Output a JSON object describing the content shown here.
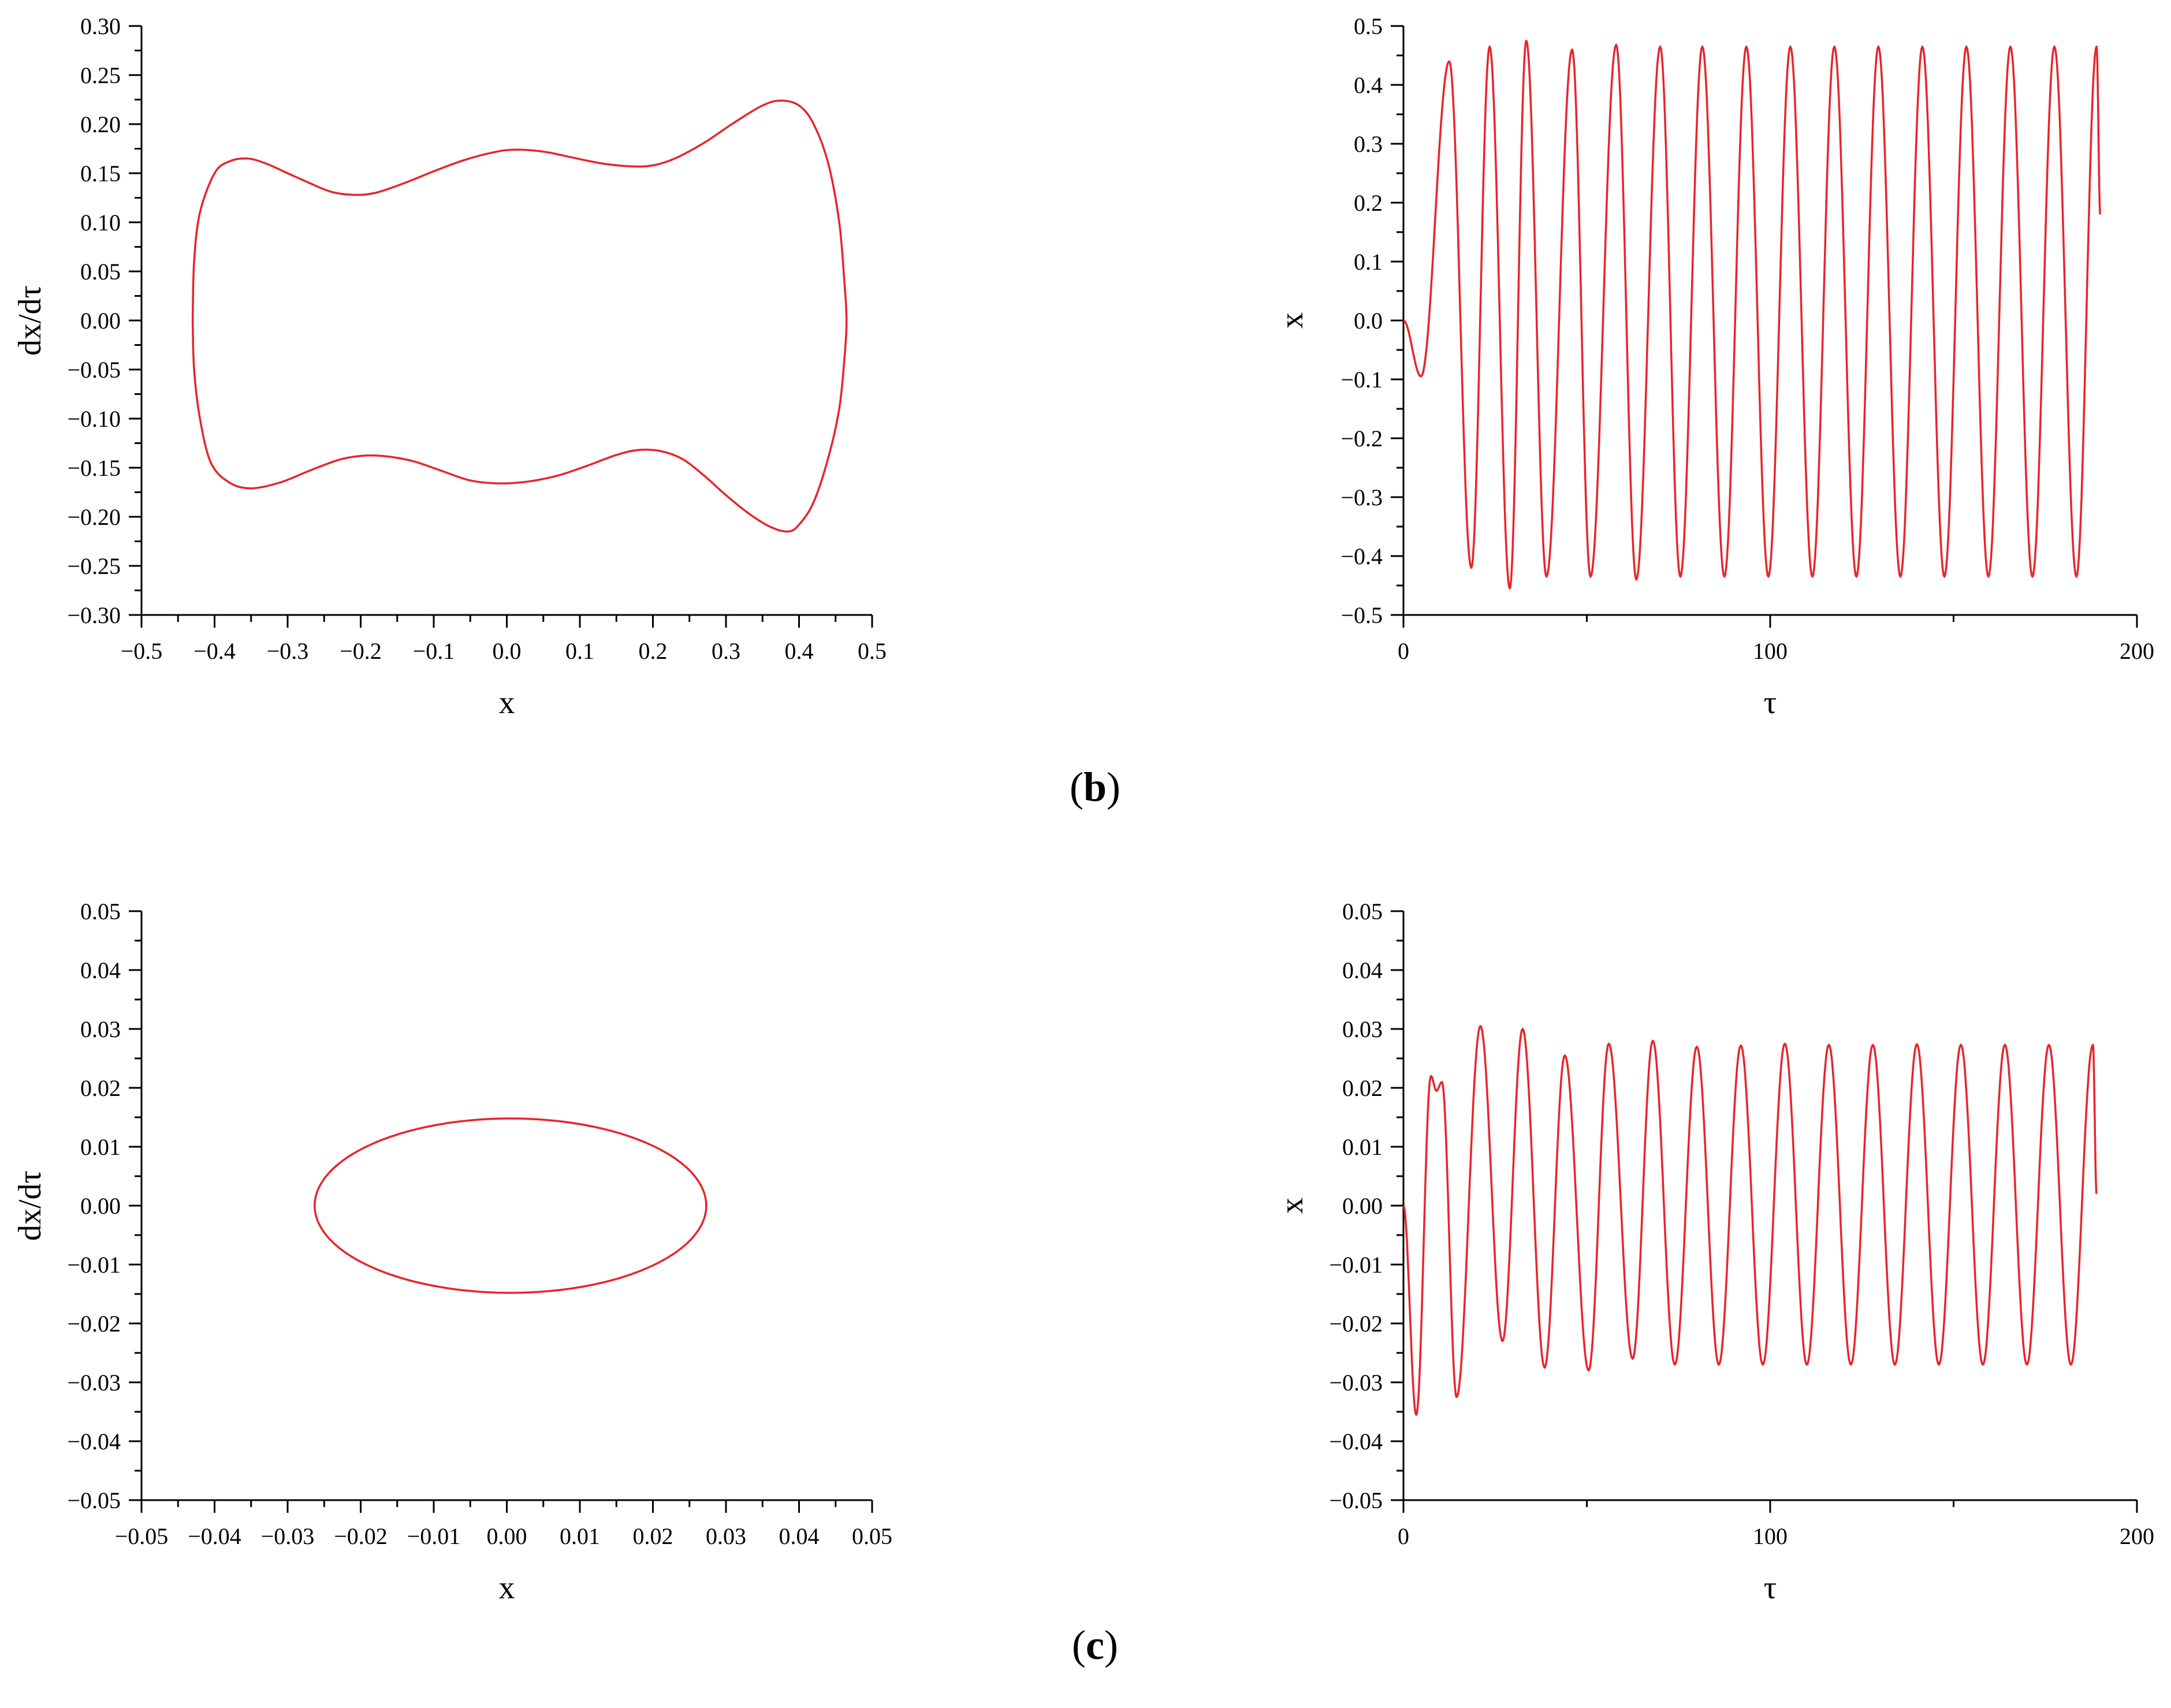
{
  "figure": {
    "panel_labels": [
      {
        "open": "(",
        "letter": "b",
        "close": ")"
      },
      {
        "open": "(",
        "letter": "c",
        "close": ")"
      }
    ],
    "line_color": "#e8242a"
  },
  "chart_data": [
    {
      "type": "line",
      "role": "phase-portrait",
      "xlabel": "x",
      "ylabel": "dx/dτ",
      "xlim": [
        -0.5,
        0.5
      ],
      "ylim": [
        -0.3,
        0.3
      ],
      "x_ticks": [
        "−0.5",
        "−0.4",
        "−0.3",
        "−0.2",
        "−0.1",
        "0.0",
        "0.1",
        "0.2",
        "0.3",
        "0.4",
        "0.5"
      ],
      "y_ticks": [
        "−0.30",
        "−0.25",
        "−0.20",
        "−0.15",
        "−0.10",
        "−0.05",
        "0.00",
        "0.05",
        "0.10",
        "0.15",
        "0.20",
        "0.25",
        "0.30"
      ],
      "closed": true,
      "points": [
        [
          -0.43,
          0.0
        ],
        [
          -0.428,
          0.06
        ],
        [
          -0.42,
          0.11
        ],
        [
          -0.4,
          0.15
        ],
        [
          -0.38,
          0.162
        ],
        [
          -0.355,
          0.165
        ],
        [
          -0.33,
          0.16
        ],
        [
          -0.3,
          0.15
        ],
        [
          -0.27,
          0.14
        ],
        [
          -0.24,
          0.131
        ],
        [
          -0.21,
          0.128
        ],
        [
          -0.18,
          0.13
        ],
        [
          -0.14,
          0.14
        ],
        [
          -0.1,
          0.152
        ],
        [
          -0.06,
          0.163
        ],
        [
          -0.02,
          0.171
        ],
        [
          0.01,
          0.174
        ],
        [
          0.05,
          0.172
        ],
        [
          0.09,
          0.166
        ],
        [
          0.13,
          0.16
        ],
        [
          0.17,
          0.157
        ],
        [
          0.2,
          0.158
        ],
        [
          0.23,
          0.165
        ],
        [
          0.27,
          0.181
        ],
        [
          0.31,
          0.201
        ],
        [
          0.35,
          0.219
        ],
        [
          0.375,
          0.224
        ],
        [
          0.4,
          0.219
        ],
        [
          0.42,
          0.2
        ],
        [
          0.44,
          0.16
        ],
        [
          0.455,
          0.1
        ],
        [
          0.462,
          0.04
        ],
        [
          0.465,
          0.0
        ],
        [
          0.462,
          -0.04
        ],
        [
          0.455,
          -0.09
        ],
        [
          0.44,
          -0.14
        ],
        [
          0.42,
          -0.185
        ],
        [
          0.4,
          -0.208
        ],
        [
          0.385,
          -0.215
        ],
        [
          0.36,
          -0.21
        ],
        [
          0.33,
          -0.196
        ],
        [
          0.3,
          -0.178
        ],
        [
          0.27,
          -0.158
        ],
        [
          0.24,
          -0.141
        ],
        [
          0.21,
          -0.133
        ],
        [
          0.18,
          -0.132
        ],
        [
          0.15,
          -0.137
        ],
        [
          0.11,
          -0.148
        ],
        [
          0.07,
          -0.158
        ],
        [
          0.03,
          -0.164
        ],
        [
          -0.01,
          -0.166
        ],
        [
          -0.05,
          -0.163
        ],
        [
          -0.09,
          -0.153
        ],
        [
          -0.13,
          -0.143
        ],
        [
          -0.17,
          -0.138
        ],
        [
          -0.2,
          -0.138
        ],
        [
          -0.23,
          -0.142
        ],
        [
          -0.27,
          -0.153
        ],
        [
          -0.31,
          -0.165
        ],
        [
          -0.35,
          -0.171
        ],
        [
          -0.38,
          -0.165
        ],
        [
          -0.405,
          -0.145
        ],
        [
          -0.42,
          -0.1
        ],
        [
          -0.428,
          -0.05
        ],
        [
          -0.43,
          0.0
        ]
      ]
    },
    {
      "type": "line",
      "role": "time-series",
      "xlabel": "τ",
      "ylabel": "x",
      "xlim": [
        0,
        200
      ],
      "ylim": [
        -0.5,
        0.5
      ],
      "x_ticks": [
        "0",
        "100",
        "200"
      ],
      "y_ticks": [
        "−0.5",
        "−0.4",
        "−0.3",
        "−0.2",
        "−0.1",
        "0.0",
        "0.1",
        "0.2",
        "0.3",
        "0.4",
        "0.5"
      ],
      "t_end": 190,
      "end_value": 0.18,
      "maxima": [
        [
          12.5,
          0.44
        ],
        [
          23.5,
          0.465
        ],
        [
          33.5,
          0.475
        ],
        [
          46,
          0.46
        ],
        [
          58,
          0.468
        ],
        [
          70,
          0.465
        ],
        [
          81.5,
          0.465
        ],
        [
          93.5,
          0.465
        ],
        [
          105.5,
          0.465
        ],
        [
          117.5,
          0.465
        ],
        [
          129.5,
          0.465
        ],
        [
          141.5,
          0.465
        ],
        [
          153.5,
          0.465
        ],
        [
          165.5,
          0.465
        ],
        [
          177.5,
          0.465
        ],
        [
          189,
          0.465
        ]
      ],
      "minima": [
        [
          4.8,
          -0.095
        ],
        [
          18.5,
          -0.42
        ],
        [
          29,
          -0.455
        ],
        [
          39,
          -0.435
        ],
        [
          51,
          -0.435
        ],
        [
          63.5,
          -0.44
        ],
        [
          75.5,
          -0.435
        ],
        [
          87.5,
          -0.435
        ],
        [
          99.5,
          -0.435
        ],
        [
          111.5,
          -0.435
        ],
        [
          123.5,
          -0.435
        ],
        [
          135.5,
          -0.435
        ],
        [
          147.5,
          -0.435
        ],
        [
          159.5,
          -0.435
        ],
        [
          171.5,
          -0.435
        ],
        [
          183.5,
          -0.435
        ]
      ]
    },
    {
      "type": "line",
      "role": "phase-portrait",
      "xlabel": "x",
      "ylabel": "dx/dτ",
      "xlim": [
        -0.05,
        0.05
      ],
      "ylim": [
        -0.05,
        0.05
      ],
      "x_ticks": [
        "−0.05",
        "−0.04",
        "−0.03",
        "−0.02",
        "−0.01",
        "0.00",
        "0.01",
        "0.02",
        "0.03",
        "0.04",
        "0.05"
      ],
      "y_ticks": [
        "−0.05",
        "−0.04",
        "−0.03",
        "−0.02",
        "−0.01",
        "0.00",
        "0.01",
        "0.02",
        "0.03",
        "0.04",
        "0.05"
      ],
      "closed": true,
      "ellipse": {
        "cx": 0.0005,
        "cy": 0.0,
        "rx": 0.0268,
        "ry": 0.0148
      }
    },
    {
      "type": "line",
      "role": "time-series",
      "xlabel": "τ",
      "ylabel": "x",
      "xlim": [
        0,
        200
      ],
      "ylim": [
        -0.05,
        0.05
      ],
      "x_ticks": [
        "0",
        "100",
        "200"
      ],
      "y_ticks": [
        "−0.05",
        "−0.04",
        "−0.03",
        "−0.02",
        "−0.01",
        "0.00",
        "0.01",
        "0.02",
        "0.03",
        "0.04",
        "0.05"
      ],
      "t_end": 189,
      "end_value": 0.002,
      "maxima": [
        [
          7.5,
          0.022
        ],
        [
          10.5,
          0.021
        ],
        [
          21,
          0.0305
        ],
        [
          32.5,
          0.03
        ],
        [
          44,
          0.0255
        ],
        [
          56,
          0.0275
        ],
        [
          68,
          0.028
        ],
        [
          80,
          0.027
        ],
        [
          92,
          0.0272
        ],
        [
          104,
          0.0275
        ],
        [
          116,
          0.0273
        ],
        [
          128,
          0.0273
        ],
        [
          140,
          0.0274
        ],
        [
          152,
          0.0273
        ],
        [
          164,
          0.0273
        ],
        [
          176,
          0.0273
        ],
        [
          188,
          0.0273
        ]
      ],
      "minima": [
        [
          3.5,
          -0.0355
        ],
        [
          9,
          0.0195
        ],
        [
          14.5,
          -0.0325
        ],
        [
          27,
          -0.023
        ],
        [
          38.5,
          -0.0275
        ],
        [
          50.5,
          -0.028
        ],
        [
          62.5,
          -0.026
        ],
        [
          74,
          -0.027
        ],
        [
          86,
          -0.027
        ],
        [
          98,
          -0.027
        ],
        [
          110,
          -0.027
        ],
        [
          122,
          -0.027
        ],
        [
          134,
          -0.027
        ],
        [
          146,
          -0.027
        ],
        [
          158,
          -0.027
        ],
        [
          170,
          -0.027
        ],
        [
          182,
          -0.027
        ]
      ]
    }
  ]
}
